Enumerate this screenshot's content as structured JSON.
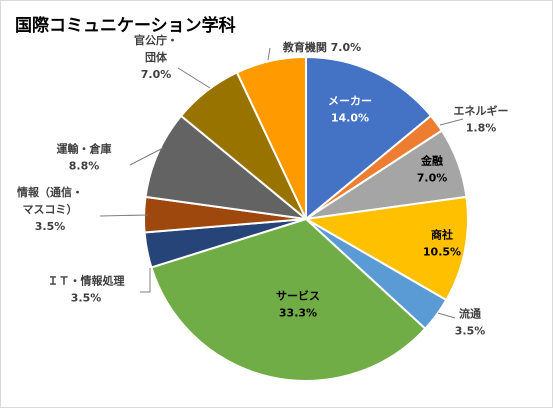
{
  "colors": {
    "blue": "#4472c4",
    "orange": "#ed7d31",
    "gray": "#a5a5a5",
    "gold": "#ffc000",
    "lightblue": "#5b9bd5",
    "green": "#70ad47",
    "navy": "#264478",
    "brown": "#9e480e",
    "darkgray": "#636363",
    "olive": "#997300",
    "amber": "#ff9a00"
  },
  "chart_data": {
    "type": "pie",
    "title": "国際コミュニケーション学科",
    "slices": [
      {
        "name": "メーカー",
        "value": 14.0,
        "label": "14.0%",
        "color_key": "blue",
        "label_lines": [
          "メーカー"
        ],
        "inside": true,
        "text_color": "#ffffff"
      },
      {
        "name": "エネルギー",
        "value": 1.8,
        "label": "1.8%",
        "color_key": "orange",
        "label_lines": [
          "エネルギー"
        ],
        "inside": false
      },
      {
        "name": "金融",
        "value": 7.0,
        "label": "7.0%",
        "color_key": "gray",
        "label_lines": [
          "金融"
        ],
        "inside": true,
        "text_color": "#000000"
      },
      {
        "name": "商社",
        "value": 10.5,
        "label": "10.5%",
        "color_key": "gold",
        "label_lines": [
          "商社"
        ],
        "inside": true,
        "text_color": "#000000"
      },
      {
        "name": "流通",
        "value": 3.5,
        "label": "3.5%",
        "color_key": "lightblue",
        "label_lines": [
          "流通"
        ],
        "inside": false
      },
      {
        "name": "サービス",
        "value": 33.3,
        "label": "33.3%",
        "color_key": "green",
        "label_lines": [
          "サービス"
        ],
        "inside": true,
        "text_color": "#000000"
      },
      {
        "name": "ＩＴ・情報処理",
        "value": 3.5,
        "label": "3.5%",
        "color_key": "navy",
        "label_lines": [
          "ＩＴ・情報処理"
        ],
        "inside": false
      },
      {
        "name": "情報（通信・マスコミ）",
        "value": 3.5,
        "label": "3.5%",
        "color_key": "brown",
        "label_lines": [
          "情報（通信・",
          "マスコミ）"
        ],
        "inside": false
      },
      {
        "name": "運輸・倉庫",
        "value": 8.8,
        "label": "8.8%",
        "color_key": "darkgray",
        "label_lines": [
          "運輸・倉庫"
        ],
        "inside": false
      },
      {
        "name": "官公庁・団体",
        "value": 7.0,
        "label": "7.0%",
        "color_key": "olive",
        "label_lines": [
          "官公庁・",
          "団体"
        ],
        "inside": false
      },
      {
        "name": "教育機関",
        "value": 7.0,
        "label": "7.0%",
        "color_key": "amber",
        "label_lines": [
          "教育機関"
        ],
        "inside": false,
        "inline_pct": true
      }
    ],
    "start_angle_deg": 0,
    "direction": "clockwise",
    "legend": "none"
  }
}
